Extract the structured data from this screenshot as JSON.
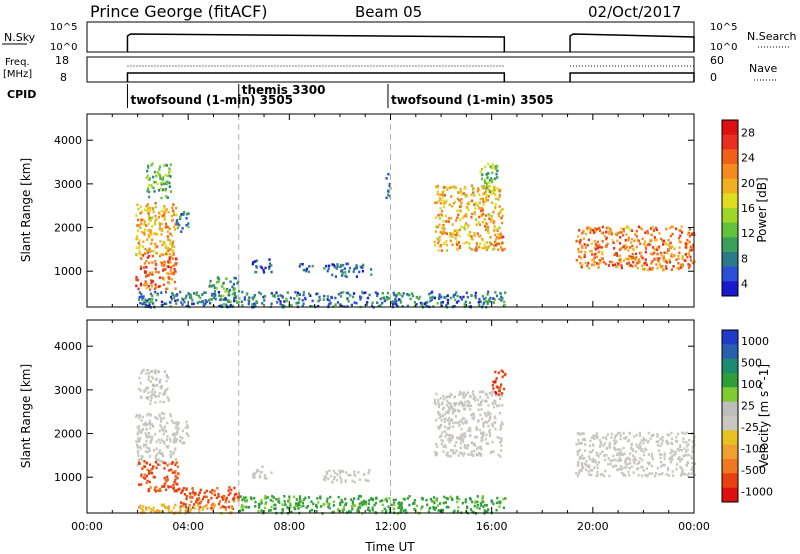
{
  "header": {
    "station": "Prince George (fitACF)",
    "beam": "Beam 05",
    "date": "02/Oct/2017"
  },
  "top_panels": {
    "nsky": {
      "label": "N.Sky",
      "ticks": [
        "10^5",
        "10^0"
      ],
      "right_ticks": [
        "10^5",
        "10^0"
      ],
      "right_label": "N.Search"
    },
    "freq": {
      "label_line1": "Freq.",
      "label_line2": "[MHz]",
      "ticks": [
        "18",
        "8"
      ],
      "right_ticks": [
        "60",
        "0"
      ],
      "right_label": "Nave"
    },
    "cpid": {
      "label": "CPID",
      "segments": [
        {
          "start_hour": 1.6,
          "label": "twofsound (1-min) 3505"
        },
        {
          "start_hour": 6.0,
          "label": "themis 3300"
        },
        {
          "start_hour": 11.9,
          "label": "twofsound (1-min) 3505"
        }
      ]
    }
  },
  "colors": {
    "power_scale": [
      "#1a1acd",
      "#2d4fd8",
      "#2a7a8a",
      "#3aa05a",
      "#62c23a",
      "#9fd62a",
      "#e0dc20",
      "#f0b020",
      "#f58a20",
      "#f06018",
      "#e83020",
      "#dc1010"
    ],
    "velocity_scale": [
      "#1e3cc8",
      "#2a5fb0",
      "#1d8a72",
      "#2e9e3a",
      "#80cc30",
      "#bdbdbd",
      "#c8c8c0",
      "#e8c020",
      "#f0a030",
      "#f07820",
      "#e84010",
      "#dc1010"
    ],
    "dashed_line": "#b0b0b0"
  },
  "chart_data": [
    {
      "type": "heatmap",
      "name": "power",
      "xlabel": "",
      "ylabel": "Slant Range [km]",
      "xlim": [
        0,
        24
      ],
      "ylim": [
        180,
        4600
      ],
      "yticks": [
        1000,
        2000,
        3000,
        4000
      ],
      "dashed_x": [
        6,
        12
      ],
      "colorbar": {
        "label": "Power [dB]",
        "ticks": [
          28,
          24,
          20,
          16,
          12,
          8,
          4
        ],
        "range": [
          0,
          30
        ]
      },
      "patches": [
        {
          "t0": 1.9,
          "t1": 3.5,
          "r0": 600,
          "r1": 1500,
          "v": 23
        },
        {
          "t0": 1.9,
          "t1": 3.5,
          "r0": 1400,
          "r1": 2600,
          "v": 19
        },
        {
          "t0": 2.3,
          "t1": 3.3,
          "r0": 2700,
          "r1": 3500,
          "v": 11
        },
        {
          "t0": 3.5,
          "t1": 4.0,
          "r0": 1900,
          "r1": 2400,
          "v": 7
        },
        {
          "t0": 4.8,
          "t1": 6.0,
          "r0": 450,
          "r1": 900,
          "v": 9
        },
        {
          "t0": 6.5,
          "t1": 7.3,
          "r0": 1000,
          "r1": 1300,
          "v": 5
        },
        {
          "t0": 8.3,
          "t1": 8.9,
          "r0": 1000,
          "r1": 1200,
          "v": 5
        },
        {
          "t0": 9.3,
          "t1": 11.2,
          "r0": 900,
          "r1": 1200,
          "v": 5
        },
        {
          "t0": 11.8,
          "t1": 12.0,
          "r0": 2700,
          "r1": 3300,
          "v": 6
        },
        {
          "t0": 13.7,
          "t1": 16.4,
          "r0": 1500,
          "r1": 3000,
          "v": 19
        },
        {
          "t0": 15.5,
          "t1": 16.2,
          "r0": 2800,
          "r1": 3500,
          "v": 12
        },
        {
          "t0": 16.1,
          "t1": 16.5,
          "r0": 1500,
          "r1": 1900,
          "v": 22
        },
        {
          "t0": 19.3,
          "t1": 24.0,
          "r0": 1050,
          "r1": 2050,
          "v": 22
        },
        {
          "t0": 2.0,
          "t1": 16.5,
          "r0": 200,
          "r1": 560,
          "v": 6
        }
      ]
    },
    {
      "type": "heatmap",
      "name": "velocity",
      "xlabel": "Time UT",
      "ylabel": "Slant Range [km]",
      "xlim": [
        0,
        24
      ],
      "ylim": [
        180,
        4600
      ],
      "yticks": [
        1000,
        2000,
        3000,
        4000
      ],
      "xticks": [
        "00:00",
        "04:00",
        "08:00",
        "12:00",
        "16:00",
        "20:00",
        "00:00"
      ],
      "dashed_x": [
        6,
        12
      ],
      "colorbar": {
        "label": "Velocity [m s^-1]",
        "ticks": [
          1000,
          500,
          100,
          25,
          -25,
          -100,
          -500,
          -1000
        ],
        "range": [
          -1200,
          1200
        ]
      },
      "patches": [
        {
          "t0": 1.9,
          "t1": 3.5,
          "r0": 1300,
          "r1": 2500,
          "v": 10
        },
        {
          "t0": 2.0,
          "t1": 3.2,
          "r0": 2700,
          "r1": 3500,
          "v": 10
        },
        {
          "t0": 3.5,
          "t1": 4.0,
          "r0": 1800,
          "r1": 2300,
          "v": 10
        },
        {
          "t0": 2.0,
          "t1": 3.6,
          "r0": 700,
          "r1": 1400,
          "v": -300
        },
        {
          "t0": 3.5,
          "t1": 6.0,
          "r0": 300,
          "r1": 800,
          "v": -300
        },
        {
          "t0": 6.5,
          "t1": 7.3,
          "r0": 1000,
          "r1": 1300,
          "v": 5
        },
        {
          "t0": 9.3,
          "t1": 11.2,
          "r0": 900,
          "r1": 1200,
          "v": 5
        },
        {
          "t0": 13.7,
          "t1": 16.4,
          "r0": 1500,
          "r1": 3000,
          "v": 10
        },
        {
          "t0": 16.0,
          "t1": 16.5,
          "r0": 2900,
          "r1": 3500,
          "v": -400
        },
        {
          "t0": 19.3,
          "t1": 24.0,
          "r0": 1050,
          "r1": 2050,
          "v": 0
        },
        {
          "t0": 6.0,
          "t1": 16.5,
          "r0": 200,
          "r1": 600,
          "v": 120
        },
        {
          "t0": 2.0,
          "t1": 6.0,
          "r0": 200,
          "r1": 400,
          "v": -60
        }
      ]
    }
  ]
}
